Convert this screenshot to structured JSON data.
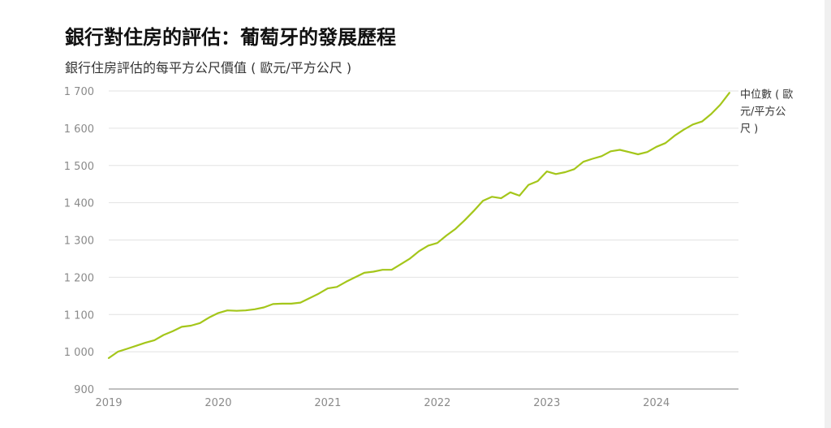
{
  "chart_data": {
    "type": "line",
    "title": "銀行對住房的評估：葡萄牙的發展歷程",
    "subtitle": "銀行住房評估的每平方公尺價值 ( 歐元/平方公尺 )",
    "xlabel": "",
    "ylabel": "",
    "ylim": [
      900,
      1700
    ],
    "y_ticks": [
      900,
      1000,
      1100,
      1200,
      1300,
      1400,
      1500,
      1600,
      1700
    ],
    "y_tick_labels": [
      "900",
      "1 000",
      "1 100",
      "1 200",
      "1 300",
      "1 400",
      "1 500",
      "1 600",
      "1 700"
    ],
    "xlim": [
      2019.0,
      2024.75
    ],
    "x_ticks": [
      2019,
      2020,
      2021,
      2022,
      2023,
      2024
    ],
    "x_tick_labels": [
      "2019",
      "2020",
      "2021",
      "2022",
      "2023",
      "2024"
    ],
    "grid": true,
    "series": [
      {
        "name": "中位數 ( 歐元/平方公尺 )",
        "label_lines": [
          "中位數 ( 歐",
          "元/平方公",
          "尺 )"
        ],
        "color": "#a4c61a",
        "x": [
          2019.0,
          2019.083,
          2019.167,
          2019.25,
          2019.333,
          2019.417,
          2019.5,
          2019.583,
          2019.667,
          2019.75,
          2019.833,
          2019.917,
          2020.0,
          2020.083,
          2020.167,
          2020.25,
          2020.333,
          2020.417,
          2020.5,
          2020.583,
          2020.667,
          2020.75,
          2020.833,
          2020.917,
          2021.0,
          2021.083,
          2021.167,
          2021.25,
          2021.333,
          2021.417,
          2021.5,
          2021.583,
          2021.667,
          2021.75,
          2021.833,
          2021.917,
          2022.0,
          2022.083,
          2022.167,
          2022.25,
          2022.333,
          2022.417,
          2022.5,
          2022.583,
          2022.667,
          2022.75,
          2022.833,
          2022.917,
          2023.0,
          2023.083,
          2023.167,
          2023.25,
          2023.333,
          2023.417,
          2023.5,
          2023.583,
          2023.667,
          2023.75,
          2023.833,
          2023.917,
          2024.0,
          2024.083,
          2024.167,
          2024.25,
          2024.333,
          2024.417,
          2024.5,
          2024.583,
          2024.667
        ],
        "values": [
          983,
          1000,
          1008,
          1016,
          1024,
          1031,
          1045,
          1055,
          1067,
          1070,
          1077,
          1092,
          1104,
          1111,
          1110,
          1111,
          1114,
          1119,
          1128,
          1129,
          1129,
          1132,
          1144,
          1156,
          1170,
          1174,
          1188,
          1200,
          1212,
          1215,
          1220,
          1220,
          1235,
          1250,
          1270,
          1285,
          1292,
          1312,
          1330,
          1353,
          1378,
          1405,
          1416,
          1412,
          1428,
          1419,
          1448,
          1458,
          1484,
          1477,
          1482,
          1490,
          1510,
          1518,
          1525,
          1538,
          1542,
          1536,
          1530,
          1536,
          1550,
          1560,
          1580,
          1596,
          1610,
          1618,
          1638,
          1663,
          1695
        ]
      }
    ]
  }
}
